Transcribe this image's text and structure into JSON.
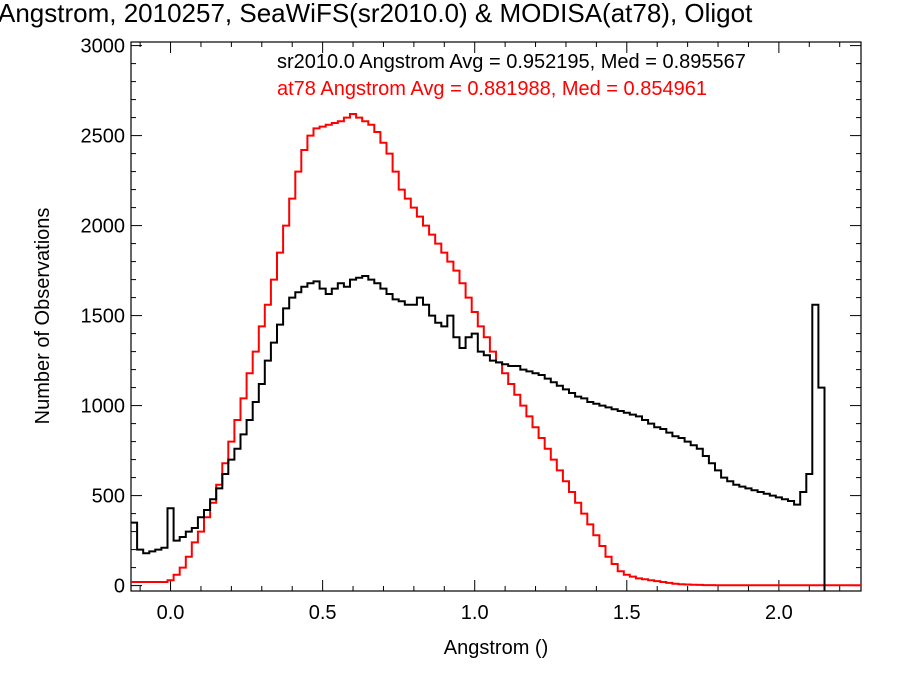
{
  "chart_data": {
    "type": "line",
    "step": true,
    "title": "Angstrom, 2010257, SeaWiFS(sr2010.0) & MODISA(at78), Oligot",
    "xlabel": "Angstrom ()",
    "ylabel": "Number of Observations",
    "xlim": [
      -0.13,
      2.27
    ],
    "ylim": [
      -30,
      3020
    ],
    "xticks": [
      0.0,
      0.5,
      1.0,
      1.5,
      2.0
    ],
    "xtick_labels": [
      "0.0",
      "0.5",
      "1.0",
      "1.5",
      "2.0"
    ],
    "yticks": [
      0,
      500,
      1000,
      1500,
      2000,
      2500,
      3000
    ],
    "ytick_labels": [
      "0",
      "500",
      "1000",
      "1500",
      "2000",
      "2500",
      "3000"
    ],
    "grid": false,
    "legend": [
      {
        "text": "sr2010.0 Angstrom Avg = 0.952195, Med = 0.895567",
        "color": "#000000"
      },
      {
        "text": "at78 Angstrom Avg = 0.881988, Med = 0.854961",
        "color": "#ff0000"
      }
    ],
    "series": [
      {
        "name": "sr2010.0",
        "color": "#000000",
        "x": [
          -0.12,
          -0.1,
          -0.08,
          -0.06,
          -0.04,
          -0.02,
          0.0,
          0.02,
          0.04,
          0.06,
          0.08,
          0.1,
          0.12,
          0.14,
          0.16,
          0.18,
          0.2,
          0.22,
          0.24,
          0.26,
          0.28,
          0.3,
          0.32,
          0.34,
          0.36,
          0.38,
          0.4,
          0.42,
          0.44,
          0.46,
          0.48,
          0.5,
          0.52,
          0.54,
          0.56,
          0.58,
          0.6,
          0.62,
          0.64,
          0.66,
          0.68,
          0.7,
          0.72,
          0.74,
          0.76,
          0.78,
          0.8,
          0.82,
          0.84,
          0.86,
          0.88,
          0.9,
          0.92,
          0.94,
          0.96,
          0.98,
          1.0,
          1.02,
          1.04,
          1.06,
          1.08,
          1.1,
          1.12,
          1.14,
          1.16,
          1.18,
          1.2,
          1.22,
          1.24,
          1.26,
          1.28,
          1.3,
          1.32,
          1.34,
          1.36,
          1.38,
          1.4,
          1.42,
          1.44,
          1.46,
          1.48,
          1.5,
          1.52,
          1.54,
          1.56,
          1.58,
          1.6,
          1.62,
          1.64,
          1.66,
          1.68,
          1.7,
          1.72,
          1.74,
          1.76,
          1.78,
          1.8,
          1.82,
          1.84,
          1.86,
          1.88,
          1.9,
          1.92,
          1.94,
          1.96,
          1.98,
          2.0,
          2.02,
          2.04,
          2.06,
          2.08,
          2.1,
          2.12,
          2.14
        ],
        "y": [
          350,
          200,
          180,
          190,
          200,
          210,
          430,
          250,
          270,
          300,
          320,
          380,
          420,
          480,
          540,
          620,
          700,
          760,
          840,
          920,
          1020,
          1120,
          1250,
          1350,
          1450,
          1540,
          1600,
          1630,
          1660,
          1680,
          1690,
          1650,
          1620,
          1650,
          1680,
          1660,
          1700,
          1710,
          1720,
          1700,
          1680,
          1650,
          1620,
          1590,
          1580,
          1560,
          1560,
          1600,
          1560,
          1500,
          1460,
          1440,
          1500,
          1380,
          1320,
          1380,
          1400,
          1300,
          1280,
          1250,
          1240,
          1230,
          1220,
          1220,
          1200,
          1190,
          1180,
          1170,
          1150,
          1130,
          1110,
          1090,
          1070,
          1050,
          1040,
          1020,
          1010,
          1000,
          990,
          980,
          970,
          960,
          950,
          940,
          920,
          900,
          880,
          870,
          850,
          830,
          820,
          800,
          780,
          760,
          720,
          680,
          640,
          600,
          580,
          560,
          550,
          540,
          530,
          520,
          510,
          500,
          490,
          480,
          470,
          450,
          520,
          620,
          1560,
          1100
        ]
      },
      {
        "name": "at78",
        "color": "#ff0000",
        "x": [
          -0.12,
          -0.1,
          -0.08,
          -0.06,
          -0.04,
          -0.02,
          0.0,
          0.02,
          0.04,
          0.06,
          0.08,
          0.1,
          0.12,
          0.14,
          0.16,
          0.18,
          0.2,
          0.22,
          0.24,
          0.26,
          0.28,
          0.3,
          0.32,
          0.34,
          0.36,
          0.38,
          0.4,
          0.42,
          0.44,
          0.46,
          0.48,
          0.5,
          0.52,
          0.54,
          0.56,
          0.58,
          0.6,
          0.62,
          0.64,
          0.66,
          0.68,
          0.7,
          0.72,
          0.74,
          0.76,
          0.78,
          0.8,
          0.82,
          0.84,
          0.86,
          0.88,
          0.9,
          0.92,
          0.94,
          0.96,
          0.98,
          1.0,
          1.02,
          1.04,
          1.06,
          1.08,
          1.1,
          1.12,
          1.14,
          1.16,
          1.18,
          1.2,
          1.22,
          1.24,
          1.26,
          1.28,
          1.3,
          1.32,
          1.34,
          1.36,
          1.38,
          1.4,
          1.42,
          1.44,
          1.46,
          1.48,
          1.5,
          1.52,
          1.54,
          1.56,
          1.58,
          1.6,
          1.62,
          1.64,
          1.66,
          1.68,
          1.7,
          1.72,
          1.74,
          1.76,
          1.78,
          1.8,
          1.82,
          1.84,
          1.86,
          1.88,
          1.9,
          1.92,
          1.94,
          1.96,
          1.98,
          2.0,
          2.02,
          2.04,
          2.06,
          2.08,
          2.1,
          2.12,
          2.14,
          2.16,
          2.18,
          2.2,
          2.22,
          2.24,
          2.26
        ],
        "y": [
          20,
          20,
          20,
          20,
          20,
          20,
          30,
          60,
          100,
          160,
          240,
          300,
          380,
          460,
          560,
          680,
          800,
          920,
          1040,
          1180,
          1300,
          1440,
          1560,
          1700,
          1850,
          2000,
          2150,
          2300,
          2420,
          2500,
          2540,
          2550,
          2560,
          2570,
          2580,
          2600,
          2620,
          2600,
          2580,
          2560,
          2520,
          2460,
          2400,
          2300,
          2200,
          2150,
          2100,
          2050,
          2000,
          1950,
          1900,
          1850,
          1800,
          1750,
          1680,
          1600,
          1520,
          1440,
          1380,
          1300,
          1240,
          1180,
          1120,
          1060,
          1000,
          940,
          880,
          820,
          760,
          700,
          640,
          580,
          520,
          460,
          400,
          340,
          280,
          220,
          160,
          120,
          80,
          60,
          50,
          40,
          35,
          30,
          25,
          20,
          15,
          10,
          8,
          6,
          5,
          4,
          3,
          3,
          2,
          2,
          2,
          2,
          2,
          2,
          2,
          2,
          2,
          2,
          2,
          2,
          2,
          2,
          2,
          2,
          2,
          2,
          2,
          2,
          2,
          2,
          2,
          2
        ]
      }
    ]
  }
}
